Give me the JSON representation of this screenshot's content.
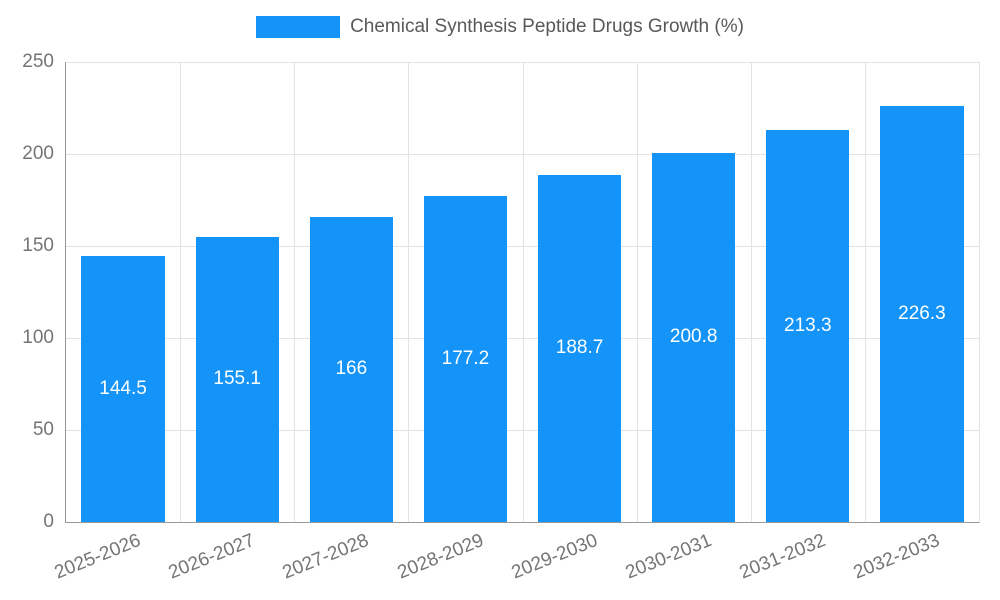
{
  "chart_data": {
    "type": "bar",
    "title": "Chemical Synthesis Peptide Drugs Growth (%)",
    "categories": [
      "2025-2026",
      "2026-2027",
      "2027-2028",
      "2028-2029",
      "2029-2030",
      "2030-2031",
      "2031-2032",
      "2032-2033"
    ],
    "values": [
      144.5,
      155.1,
      166,
      177.2,
      188.7,
      200.8,
      213.3,
      226.3
    ],
    "series": [
      {
        "name": "Chemical Synthesis Peptide Drugs Growth (%)",
        "values": [
          144.5,
          155.1,
          166,
          177.2,
          188.7,
          200.8,
          213.3,
          226.3
        ]
      }
    ],
    "xlabel": "",
    "ylabel": "",
    "ylim": [
      0,
      250
    ],
    "yticks": [
      0,
      50,
      100,
      150,
      200,
      250
    ],
    "grid": true,
    "legend_position": "top-center",
    "data_labels": "inside-center",
    "colors": {
      "bar": "#1494f9",
      "bar_label": "#ffffff",
      "tick_label": "#757575",
      "title": "#595959",
      "gridline": "#e3e3e3",
      "axis_line": "#999999"
    }
  }
}
